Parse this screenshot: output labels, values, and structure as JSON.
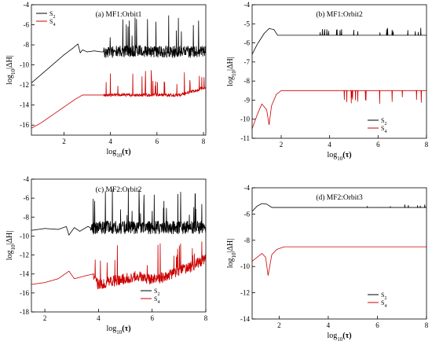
{
  "chart_data": [
    {
      "type": "line",
      "title": "(a) MF1:Orbit1",
      "xlabel": "log10(τ)",
      "ylabel": "log10|ΔH|",
      "xlim": [
        0.6,
        8.1
      ],
      "ylim": [
        -17,
        -4
      ],
      "xticks": [
        2,
        4,
        6,
        8
      ],
      "yticks": [
        -16,
        -14,
        -12,
        -10,
        -8,
        -6,
        -4
      ],
      "legend": "top-left",
      "series": [
        {
          "name": "S2",
          "color": "#000000",
          "x": [
            0.6,
            1.0,
            1.5,
            2.0,
            2.4,
            2.6,
            2.7,
            2.8,
            3.0,
            3.3,
            3.6,
            3.7,
            4.0,
            5.0,
            6.0,
            7.0,
            8.0
          ],
          "y": [
            -11.8,
            -11.0,
            -10.0,
            -9.0,
            -8.3,
            -7.9,
            -8.8,
            -8.5,
            -8.7,
            -8.6,
            -8.7,
            -8.7,
            -8.7,
            -8.6,
            -8.7,
            -8.7,
            -8.7
          ],
          "noise": 0.6,
          "spikes_from": 3.7,
          "spike_dir": 1,
          "spike_level": -4.8
        },
        {
          "name": "S4",
          "color": "#cc0000",
          "x": [
            0.6,
            1.0,
            1.5,
            2.0,
            2.5,
            2.8,
            3.0,
            3.5,
            3.7,
            4.0,
            5.0,
            6.0,
            7.0,
            8.0
          ],
          "y": [
            -16.3,
            -15.8,
            -15.0,
            -14.2,
            -13.4,
            -13.0,
            -13.0,
            -13.0,
            -13.0,
            -13.0,
            -13.0,
            -13.0,
            -13.0,
            -12.3
          ],
          "noise": 0.15,
          "spikes_from": 3.7,
          "spike_dir": 1,
          "spike_level": -10.5
        }
      ]
    },
    {
      "type": "line",
      "title": "(b) MF1:Orbit2",
      "xlabel": "log10(τ)",
      "ylabel": "log10|ΔH|",
      "xlim": [
        0.8,
        8.0
      ],
      "ylim": [
        -11,
        -4
      ],
      "xticks": [
        2,
        4,
        6,
        8
      ],
      "yticks": [
        -11,
        -10,
        -9,
        -8,
        -7,
        -6,
        -5,
        -4
      ],
      "legend": "bottom-left",
      "series": [
        {
          "name": "S2",
          "color": "#000000",
          "x": [
            0.8,
            1.0,
            1.3,
            1.5,
            1.7,
            1.85,
            2.0,
            3.0,
            4.0,
            5.0,
            6.0,
            7.0,
            7.8,
            8.0
          ],
          "y": [
            -6.6,
            -6.1,
            -5.5,
            -5.25,
            -5.3,
            -5.6,
            -5.6,
            -5.6,
            -5.6,
            -5.6,
            -5.6,
            -5.6,
            -5.6,
            -5.6
          ],
          "noise": 0,
          "spikes_from": 3.6,
          "spike_dir": 1,
          "spike_level": -5.2
        },
        {
          "name": "S4",
          "color": "#cc0000",
          "x": [
            0.8,
            1.0,
            1.2,
            1.4,
            1.5,
            1.6,
            1.8,
            2.0,
            3.0,
            4.0,
            5.0,
            6.0,
            7.0,
            8.0
          ],
          "y": [
            -10.5,
            -9.8,
            -9.2,
            -9.5,
            -10.3,
            -9.3,
            -8.7,
            -8.5,
            -8.5,
            -8.5,
            -8.5,
            -8.5,
            -8.5,
            -8.5
          ],
          "noise": 0,
          "spikes_from": 4.6,
          "spike_dir": -1,
          "spike_level": -9.3
        }
      ]
    },
    {
      "type": "line",
      "title": "(c) MF2:Orbit2",
      "xlabel": "log10(τ)",
      "ylabel": "log10|ΔH|",
      "xlim": [
        1.5,
        8.0
      ],
      "ylim": [
        -18,
        -4
      ],
      "xticks": [
        2,
        4,
        6,
        8
      ],
      "yticks": [
        -18,
        -16,
        -14,
        -12,
        -10,
        -8,
        -6,
        -4
      ],
      "legend": "bottom-right",
      "series": [
        {
          "name": "S2",
          "color": "#000000",
          "x": [
            1.5,
            2.0,
            2.5,
            2.8,
            2.9,
            3.1,
            3.3,
            3.6,
            3.8,
            4.0,
            5.0,
            6.0,
            7.0,
            8.0
          ],
          "y": [
            -9.4,
            -9.2,
            -9.3,
            -9.0,
            -9.9,
            -9.1,
            -9.5,
            -9.0,
            -9.2,
            -9.1,
            -9.1,
            -9.1,
            -9.1,
            -9.1
          ],
          "noise": 0.7,
          "spikes_from": 3.7,
          "spike_dir": 1,
          "spike_level": -5.0
        },
        {
          "name": "S4",
          "color": "#cc0000",
          "x": [
            1.5,
            2.0,
            2.5,
            2.9,
            3.1,
            3.5,
            3.8,
            4.0,
            4.5,
            5.0,
            5.5,
            6.0,
            6.5,
            7.0,
            7.5,
            8.0
          ],
          "y": [
            -15.1,
            -14.9,
            -14.5,
            -13.7,
            -14.5,
            -14.2,
            -14.0,
            -15.2,
            -14.8,
            -14.5,
            -14.2,
            -14.6,
            -14.3,
            -13.6,
            -13.2,
            -12.4
          ],
          "noise": 0.6,
          "spikes_from": 3.8,
          "spike_dir": 1,
          "spike_level": -10.5
        }
      ]
    },
    {
      "type": "line",
      "title": "(d) MF2:Orbit3",
      "xlabel": "log10(τ)",
      "ylabel": "log10|ΔH|",
      "xlim": [
        0.9,
        8.0
      ],
      "ylim": [
        -14,
        -4
      ],
      "xticks": [
        2,
        4,
        6,
        8
      ],
      "yticks": [
        -14,
        -12,
        -10,
        -8,
        -6,
        -4
      ],
      "legend": "bottom-right",
      "series": [
        {
          "name": "S2",
          "color": "#000000",
          "x": [
            0.9,
            1.1,
            1.3,
            1.5,
            1.7,
            1.9,
            2.2,
            3.0,
            4.0,
            5.0,
            6.0,
            7.0,
            8.0
          ],
          "y": [
            -5.8,
            -5.4,
            -5.2,
            -5.25,
            -5.5,
            -5.5,
            -5.5,
            -5.5,
            -5.5,
            -5.5,
            -5.5,
            -5.5,
            -5.5
          ],
          "noise": 0,
          "spikes_from": 5.2,
          "spike_dir": 1,
          "spike_level": -5.25
        },
        {
          "name": "S4",
          "color": "#cc0000",
          "x": [
            0.9,
            1.1,
            1.3,
            1.45,
            1.55,
            1.7,
            1.9,
            2.2,
            3.0,
            4.0,
            5.0,
            6.0,
            7.0,
            8.0
          ],
          "y": [
            -9.6,
            -9.3,
            -9.0,
            -9.3,
            -10.7,
            -9.1,
            -8.7,
            -8.5,
            -8.5,
            -8.5,
            -8.5,
            -8.5,
            -8.5,
            -8.5
          ],
          "noise": 0,
          "spikes_from": 9,
          "spike_dir": 1,
          "spike_level": -8.5
        }
      ]
    }
  ],
  "legend_labels": [
    "S2",
    "S4"
  ]
}
